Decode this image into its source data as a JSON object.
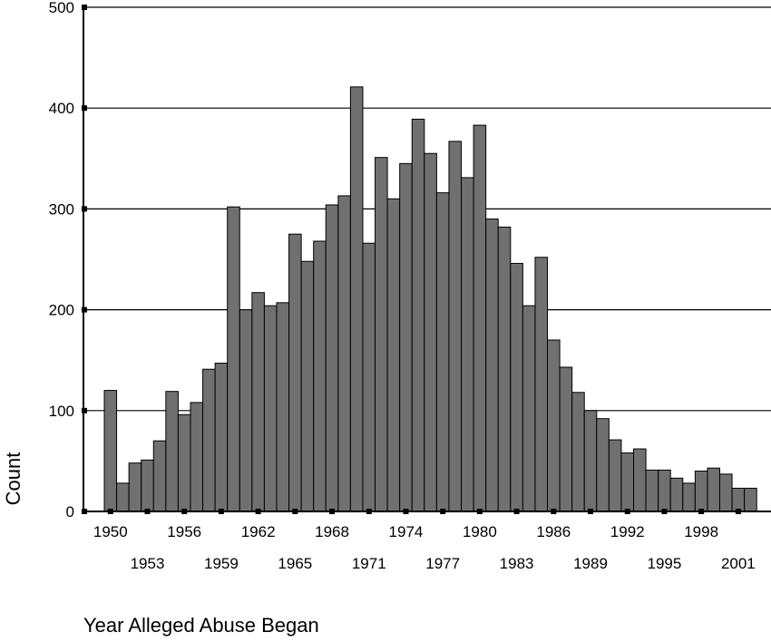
{
  "chart_data": {
    "type": "bar",
    "title": "",
    "xlabel": "Year Alleged Abuse Began",
    "ylabel": "Count",
    "ylim": [
      0,
      500
    ],
    "yticks": [
      0,
      100,
      200,
      300,
      400,
      500
    ],
    "grid": true,
    "bar_color": "#707070",
    "grid_color": "#000000",
    "x_tick_labels_top": [
      "1950",
      "1956",
      "1962",
      "1968",
      "1974",
      "1980",
      "1986",
      "1992",
      "1998"
    ],
    "x_tick_labels_bottom": [
      "1953",
      "1959",
      "1965",
      "1971",
      "1977",
      "1983",
      "1989",
      "1995",
      "2001"
    ],
    "categories": [
      "1950",
      "1951",
      "1952",
      "1953",
      "1954",
      "1955",
      "1956",
      "1957",
      "1958",
      "1959",
      "1960",
      "1961",
      "1962",
      "1963",
      "1964",
      "1965",
      "1966",
      "1967",
      "1968",
      "1969",
      "1970",
      "1971",
      "1972",
      "1973",
      "1974",
      "1975",
      "1976",
      "1977",
      "1978",
      "1979",
      "1980",
      "1981",
      "1982",
      "1983",
      "1984",
      "1985",
      "1986",
      "1987",
      "1988",
      "1989",
      "1990",
      "1991",
      "1992",
      "1993",
      "1994",
      "1995",
      "1996",
      "1997",
      "1998",
      "1999",
      "2000",
      "2001",
      "2002"
    ],
    "values": [
      120,
      28,
      48,
      51,
      70,
      119,
      96,
      108,
      141,
      147,
      302,
      200,
      217,
      204,
      207,
      275,
      248,
      268,
      304,
      313,
      421,
      266,
      351,
      310,
      345,
      389,
      355,
      316,
      367,
      331,
      383,
      290,
      282,
      246,
      204,
      252,
      170,
      143,
      118,
      100,
      92,
      71,
      58,
      62,
      41,
      41,
      33,
      28,
      40,
      43,
      37,
      23,
      23
    ]
  }
}
